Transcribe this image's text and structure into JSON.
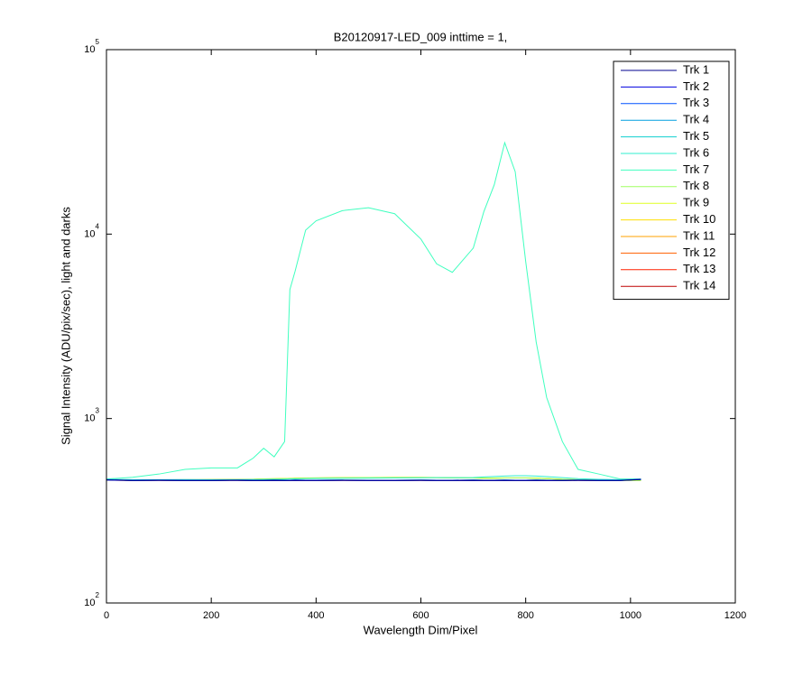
{
  "chart_data": {
    "type": "line",
    "title": "B20120917-LED_009 inttime = 1,",
    "x_label": "Wavelength Dim/Pixel",
    "y_label": "Signal Intensity (ADU/pix/sec), light and darks",
    "xlim": [
      0,
      1200
    ],
    "ylim": [
      100,
      100000
    ],
    "y_scale": "log",
    "legend": "northeast",
    "xticks": [
      0,
      200,
      400,
      600,
      800,
      1000,
      1200
    ],
    "yticks": [
      {
        "value": 100,
        "label": "10",
        "exponent": "2"
      },
      {
        "value": 1000,
        "label": "10",
        "exponent": "3"
      },
      {
        "value": 10000,
        "label": "10",
        "exponent": "4"
      },
      {
        "value": 100000,
        "label": "10",
        "exponent": "5"
      }
    ],
    "x": [
      0,
      50,
      100,
      150,
      200,
      250,
      280,
      300,
      320,
      340,
      350,
      360,
      380,
      400,
      450,
      500,
      550,
      600,
      630,
      660,
      700,
      720,
      740,
      760,
      780,
      800,
      820,
      840,
      870,
      900,
      940,
      980,
      1020
    ],
    "series": [
      {
        "name": "Trk 1",
        "color": "#00008f",
        "values": [
          465,
          462,
          463,
          462,
          462,
          463,
          462,
          462,
          463,
          462,
          462,
          463,
          462,
          462,
          463,
          462,
          462,
          463,
          462,
          462,
          463,
          462,
          462,
          463,
          462,
          462,
          463,
          462,
          462,
          463,
          462,
          462,
          468
        ]
      },
      {
        "name": "Trk 2",
        "color": "#0000df",
        "values": [
          464,
          461,
          462,
          461,
          461,
          462,
          461,
          461,
          462,
          461,
          461,
          462,
          461,
          461,
          462,
          461,
          461,
          462,
          461,
          461,
          462,
          461,
          461,
          462,
          461,
          461,
          462,
          461,
          461,
          462,
          461,
          461,
          467
        ]
      },
      {
        "name": "Trk 3",
        "color": "#0050ff",
        "values": [
          465,
          462,
          463,
          462,
          462,
          463,
          462,
          462,
          463,
          462,
          462,
          463,
          462,
          462,
          463,
          462,
          462,
          463,
          462,
          462,
          463,
          462,
          462,
          463,
          462,
          462,
          463,
          462,
          462,
          463,
          462,
          462,
          468
        ]
      },
      {
        "name": "Trk 4",
        "color": "#009fdf",
        "values": [
          466,
          463,
          464,
          463,
          463,
          464,
          463,
          463,
          464,
          463,
          463,
          464,
          463,
          463,
          464,
          463,
          463,
          464,
          463,
          463,
          464,
          463,
          463,
          464,
          463,
          463,
          464,
          463,
          463,
          464,
          463,
          463,
          469
        ]
      },
      {
        "name": "Trk 5",
        "color": "#10cfd0",
        "values": [
          466,
          463,
          464,
          463,
          463,
          464,
          463,
          463,
          464,
          463,
          463,
          464,
          463,
          463,
          464,
          463,
          463,
          464,
          463,
          463,
          464,
          463,
          463,
          464,
          463,
          463,
          464,
          463,
          463,
          464,
          463,
          463,
          469
        ]
      },
      {
        "name": "Trk 6",
        "color": "#30efcf",
        "values": [
          468,
          466,
          466,
          467,
          466,
          466,
          467,
          467,
          468,
          468,
          470,
          471,
          472,
          473,
          474,
          475,
          476,
          477,
          478,
          478,
          479,
          482,
          485,
          488,
          490,
          490,
          488,
          484,
          478,
          472,
          468,
          466,
          466
        ]
      },
      {
        "name": "Trk 7",
        "color": "#40ffbf",
        "values": [
          470,
          480,
          500,
          530,
          540,
          540,
          610,
          690,
          620,
          750,
          5000,
          6300,
          10500,
          11800,
          13400,
          13900,
          12900,
          9400,
          6900,
          6200,
          8400,
          13200,
          18500,
          31300,
          21800,
          7100,
          2600,
          1300,
          750,
          530,
          500,
          470,
          470
        ]
      },
      {
        "name": "Trk 8",
        "color": "#9fff60",
        "values": [
          463,
          463,
          464,
          465,
          466,
          467,
          468,
          470,
          471,
          472,
          473,
          474,
          475,
          476,
          477,
          478,
          479,
          479,
          478,
          477,
          476,
          475,
          475,
          476,
          476,
          476,
          475,
          472,
          468,
          465,
          463,
          462,
          462
        ]
      },
      {
        "name": "Trk 9",
        "color": "#dfff20",
        "values": [
          463,
          463,
          464,
          465,
          466,
          467,
          468,
          470,
          471,
          472,
          473,
          474,
          475,
          476,
          477,
          478,
          479,
          479,
          478,
          477,
          476,
          475,
          475,
          476,
          476,
          476,
          475,
          472,
          468,
          465,
          463,
          462,
          462
        ]
      },
      {
        "name": "Trk 10",
        "color": "#ffdf00",
        "values": [
          464,
          464,
          465,
          466,
          467,
          468,
          469,
          471,
          472,
          473,
          474,
          475,
          476,
          477,
          478,
          479,
          480,
          480,
          479,
          478,
          477,
          476,
          476,
          477,
          477,
          477,
          476,
          473,
          469,
          466,
          464,
          463,
          463
        ]
      },
      {
        "name": "Trk 11",
        "color": "#ffa000",
        "values": [
          463,
          463,
          464,
          465,
          466,
          467,
          468,
          470,
          471,
          472,
          473,
          474,
          475,
          476,
          477,
          478,
          479,
          479,
          478,
          477,
          476,
          475,
          475,
          476,
          476,
          476,
          475,
          472,
          468,
          465,
          463,
          462,
          462
        ]
      },
      {
        "name": "Trk 12",
        "color": "#ff6000",
        "values": [
          465,
          462,
          463,
          462,
          462,
          463,
          462,
          462,
          463,
          462,
          462,
          463,
          462,
          462,
          463,
          462,
          462,
          463,
          462,
          462,
          463,
          462,
          462,
          463,
          462,
          462,
          463,
          462,
          462,
          463,
          462,
          462,
          468
        ]
      },
      {
        "name": "Trk 13",
        "color": "#ff2000",
        "values": [
          464,
          461,
          462,
          461,
          461,
          462,
          461,
          461,
          462,
          461,
          461,
          462,
          461,
          461,
          462,
          461,
          461,
          462,
          461,
          461,
          462,
          461,
          461,
          462,
          461,
          461,
          462,
          461,
          461,
          462,
          461,
          461,
          467
        ]
      },
      {
        "name": "Trk 14",
        "color": "#bf0000",
        "values": [
          465,
          462,
          463,
          462,
          462,
          463,
          462,
          462,
          463,
          462,
          462,
          463,
          462,
          462,
          463,
          462,
          462,
          463,
          462,
          462,
          463,
          462,
          462,
          463,
          462,
          462,
          463,
          462,
          462,
          463,
          462,
          462,
          468
        ]
      }
    ]
  }
}
